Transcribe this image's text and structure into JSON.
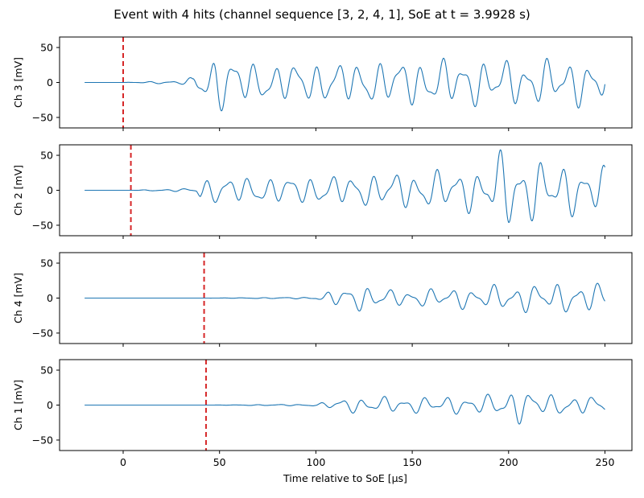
{
  "chart_data": {
    "type": "line",
    "title": "Event with 4 hits (channel sequence [3, 2, 4, 1], SoE at t = 3.9928 s)",
    "xlabel": "Time relative to SoE [µs]",
    "xlim": [
      -33,
      264
    ],
    "ylim": [
      -65,
      65
    ],
    "x_ticks": [
      0,
      50,
      100,
      150,
      200,
      250
    ],
    "y_ticks": [
      50,
      0,
      -50
    ],
    "trace_color": "#1f77b4",
    "marker_color": "#d62728",
    "grid": false,
    "shared_x": true,
    "waveform_start": -20,
    "waveform_end": 250,
    "panels": [
      {
        "ylabel": "Ch 3 [mV]",
        "arrival_time": 0,
        "envelope": [
          [
            -20,
            0
          ],
          [
            0,
            0
          ],
          [
            30,
            3
          ],
          [
            36,
            8
          ],
          [
            38,
            22
          ],
          [
            45,
            35
          ],
          [
            48,
            45
          ],
          [
            70,
            28
          ],
          [
            100,
            30
          ],
          [
            130,
            32
          ],
          [
            150,
            35
          ],
          [
            180,
            35
          ],
          [
            200,
            34
          ],
          [
            250,
            35
          ]
        ]
      },
      {
        "ylabel": "Ch 2 [mV]",
        "arrival_time": 4,
        "envelope": [
          [
            -20,
            0
          ],
          [
            4,
            0
          ],
          [
            38,
            3
          ],
          [
            40,
            18
          ],
          [
            50,
            20
          ],
          [
            80,
            20
          ],
          [
            110,
            22
          ],
          [
            150,
            28
          ],
          [
            180,
            32
          ],
          [
            189,
            30
          ],
          [
            193,
            55
          ],
          [
            200,
            60
          ],
          [
            220,
            40
          ],
          [
            250,
            35
          ]
        ]
      },
      {
        "ylabel": "Ch 4 [mV]",
        "arrival_time": 42,
        "envelope": [
          [
            -20,
            0
          ],
          [
            42,
            0
          ],
          [
            100,
            1.5
          ],
          [
            104,
            6
          ],
          [
            110,
            14
          ],
          [
            125,
            20
          ],
          [
            140,
            12
          ],
          [
            160,
            14
          ],
          [
            180,
            16
          ],
          [
            200,
            20
          ],
          [
            220,
            22
          ],
          [
            250,
            22
          ]
        ]
      },
      {
        "ylabel": "Ch 1 [mV]",
        "arrival_time": 43,
        "envelope": [
          [
            -20,
            0
          ],
          [
            43,
            0
          ],
          [
            100,
            1.5
          ],
          [
            108,
            7
          ],
          [
            115,
            11
          ],
          [
            130,
            12
          ],
          [
            150,
            12
          ],
          [
            170,
            13
          ],
          [
            190,
            15
          ],
          [
            200,
            24
          ],
          [
            205,
            27
          ],
          [
            220,
            16
          ],
          [
            250,
            12
          ]
        ]
      }
    ]
  }
}
